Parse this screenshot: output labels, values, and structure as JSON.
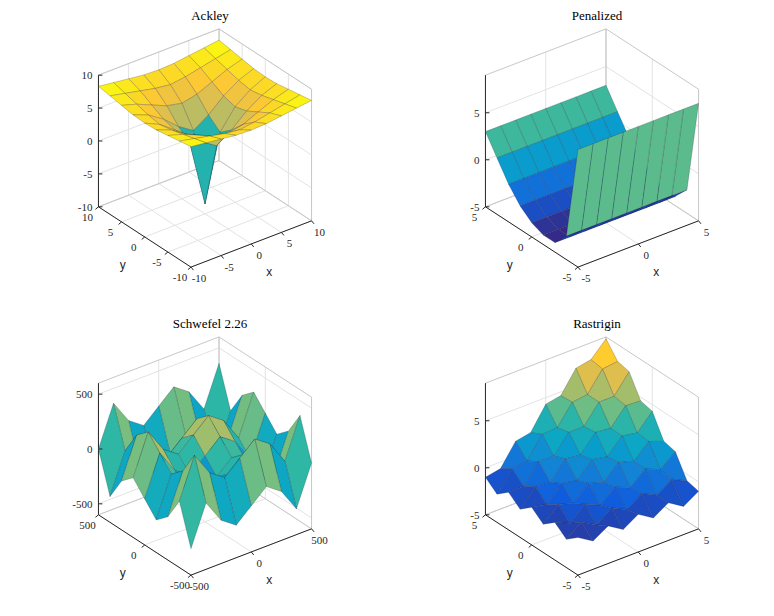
{
  "chart_data": [
    {
      "type": "surface",
      "title": "Ackley",
      "xlabel": "x",
      "ylabel": "y",
      "xlim": [
        -10,
        10
      ],
      "ylim": [
        -10,
        10
      ],
      "zlim": [
        -10,
        10
      ],
      "xticks": [
        -10,
        -5,
        0,
        5,
        10
      ],
      "yticks": [
        -10,
        -5,
        0,
        5,
        10
      ],
      "zticks": [
        -10,
        -5,
        0,
        5,
        10
      ],
      "x": [
        -10,
        -7.5,
        -5,
        -2.5,
        0,
        2.5,
        5,
        7.5,
        10
      ],
      "y": [
        -10,
        -7.5,
        -5,
        -2.5,
        0,
        2.5,
        5,
        7.5,
        10
      ],
      "z": [
        [
          8.3,
          8.0,
          7.7,
          7.4,
          7.3,
          7.4,
          7.7,
          8.0,
          8.3
        ],
        [
          8.0,
          7.5,
          7.0,
          6.5,
          6.2,
          6.5,
          7.0,
          7.5,
          8.0
        ],
        [
          7.7,
          7.0,
          6.0,
          5.0,
          4.5,
          5.0,
          6.0,
          7.0,
          7.7
        ],
        [
          7.4,
          6.5,
          5.0,
          3.0,
          1.5,
          3.0,
          5.0,
          6.5,
          7.4
        ],
        [
          7.3,
          6.2,
          4.5,
          1.5,
          -8.5,
          1.5,
          4.5,
          6.2,
          7.3
        ],
        [
          7.4,
          6.5,
          5.0,
          3.0,
          1.5,
          3.0,
          5.0,
          6.5,
          7.4
        ],
        [
          7.7,
          7.0,
          6.0,
          5.0,
          4.5,
          5.0,
          6.0,
          7.0,
          7.7
        ],
        [
          8.0,
          7.5,
          7.0,
          6.5,
          6.2,
          6.5,
          7.0,
          7.5,
          8.0
        ],
        [
          8.3,
          8.0,
          7.7,
          7.4,
          7.3,
          7.4,
          7.7,
          8.0,
          8.3
        ]
      ]
    },
    {
      "type": "surface",
      "title": "Penalized",
      "xlabel": "x",
      "ylabel": "y",
      "xlim": [
        -5,
        5
      ],
      "ylim": [
        -5,
        5
      ],
      "zlim": [
        -5,
        9
      ],
      "xticks": [
        -5,
        0,
        5
      ],
      "yticks": [
        -5,
        0,
        5
      ],
      "zticks": [
        -5,
        0,
        5
      ],
      "x": [
        -5,
        -3.75,
        -2.5,
        -1.25,
        0,
        1.25,
        2.5,
        3.75,
        5
      ],
      "y": [
        -5,
        -3.75,
        -2.5,
        -1.25,
        0,
        1.25,
        2.5,
        3.75,
        5
      ],
      "z": [
        [
          7.5,
          7.5,
          7.5,
          7.5,
          7.5,
          7.5,
          7.5,
          7.5,
          7.5
        ],
        [
          -2.5,
          -2.5,
          -2.5,
          -2.5,
          -2.5,
          -2.5,
          -2.5,
          -2.5,
          -2.5
        ],
        [
          -4,
          -4,
          -4,
          -4,
          -4,
          -4,
          -4,
          -4,
          -4
        ],
        [
          -4,
          -4,
          -4,
          -4,
          -4,
          -4,
          -4,
          -4,
          -4
        ],
        [
          -3.5,
          -3.5,
          -3.5,
          -3.5,
          -3.5,
          -3.5,
          -3.5,
          -3.5,
          -3.5
        ],
        [
          -2.5,
          -2.5,
          -2.5,
          -2.5,
          -2.5,
          -2.5,
          -2.5,
          -2.5,
          -2.5
        ],
        [
          -1,
          -1,
          -1,
          -1,
          -1,
          -1,
          -1,
          -1,
          -1
        ],
        [
          1,
          1,
          1,
          1,
          1,
          1,
          1,
          1,
          1
        ],
        [
          3,
          3,
          3,
          3,
          3,
          3,
          3,
          3,
          3
        ]
      ]
    },
    {
      "type": "surface",
      "title": "Schwefel 2.26",
      "xlabel": "x",
      "ylabel": "y",
      "xlim": [
        -500,
        500
      ],
      "ylim": [
        -500,
        500
      ],
      "zlim": [
        -600,
        600
      ],
      "xticks": [
        -500,
        0,
        500
      ],
      "yticks": [
        -500,
        0,
        500
      ],
      "zticks": [
        -500,
        0,
        500
      ],
      "x": [
        -500,
        -375,
        -250,
        -125,
        0,
        125,
        250,
        375,
        500
      ],
      "y": [
        -500,
        -375,
        -250,
        -125,
        0,
        125,
        250,
        375,
        500
      ],
      "z": [
        [
          -360,
          5,
          -206,
          -303,
          -180,
          -57,
          -154,
          -365,
          0
        ],
        [
          5,
          370,
          159,
          62,
          185,
          308,
          211,
          0,
          365
        ],
        [
          -206,
          159,
          -52,
          -149,
          -26,
          97,
          0,
          -211,
          154
        ],
        [
          -303,
          62,
          -149,
          -246,
          -123,
          0,
          -97,
          -308,
          57
        ],
        [
          -180,
          185,
          -26,
          -123,
          0,
          123,
          26,
          -185,
          180
        ],
        [
          -57,
          308,
          97,
          0,
          123,
          246,
          149,
          -62,
          303
        ],
        [
          -154,
          211,
          0,
          -97,
          26,
          149,
          52,
          -159,
          206
        ],
        [
          -365,
          0,
          -211,
          -308,
          -185,
          -62,
          -159,
          -370,
          -5
        ],
        [
          0,
          365,
          154,
          57,
          180,
          303,
          206,
          -5,
          360
        ]
      ]
    },
    {
      "type": "surface",
      "title": "Rastrigin",
      "xlabel": "x",
      "ylabel": "y",
      "xlim": [
        -5,
        5
      ],
      "ylim": [
        -5,
        5
      ],
      "zlim": [
        -5,
        9
      ],
      "xticks": [
        -5,
        0,
        5
      ],
      "yticks": [
        -5,
        0,
        5
      ],
      "zticks": [
        -5,
        0,
        5
      ],
      "x": [
        -5,
        -3.75,
        -2.5,
        -1.25,
        0,
        1.25,
        2.5,
        3.75,
        5
      ],
      "y": [
        -5,
        -3.75,
        -2.5,
        -1.25,
        0,
        1.25,
        2.5,
        3.75,
        5
      ],
      "z": [
        [
          -1.0,
          -2.0,
          -1.0,
          -2.0,
          -1.0,
          -2.0,
          -1.0,
          -2.0,
          -1.0
        ],
        [
          -2.0,
          -0.8,
          -1.7,
          -0.5,
          -1.3,
          -0.2,
          -1.0,
          0.1,
          -0.7
        ],
        [
          -1.0,
          -1.7,
          -0.3,
          -1.0,
          0.3,
          -0.4,
          1.0,
          0.3,
          1.6
        ],
        [
          -2.0,
          -0.5,
          -1.0,
          0.5,
          0.0,
          1.5,
          1.0,
          2.5,
          1.9
        ],
        [
          -1.0,
          -1.3,
          0.3,
          0.0,
          1.6,
          1.3,
          2.9,
          2.6,
          4.3
        ],
        [
          -2.0,
          -0.2,
          -0.4,
          1.5,
          1.3,
          3.1,
          2.9,
          4.7,
          4.6
        ],
        [
          -1.0,
          -1.0,
          1.0,
          1.0,
          2.9,
          2.9,
          4.9,
          4.9,
          6.9
        ],
        [
          -2.0,
          0.1,
          0.3,
          2.5,
          2.6,
          4.7,
          4.9,
          7.0,
          7.2
        ],
        [
          -1.0,
          -0.7,
          1.6,
          1.9,
          4.3,
          4.6,
          6.9,
          7.2,
          8.8
        ]
      ]
    }
  ]
}
